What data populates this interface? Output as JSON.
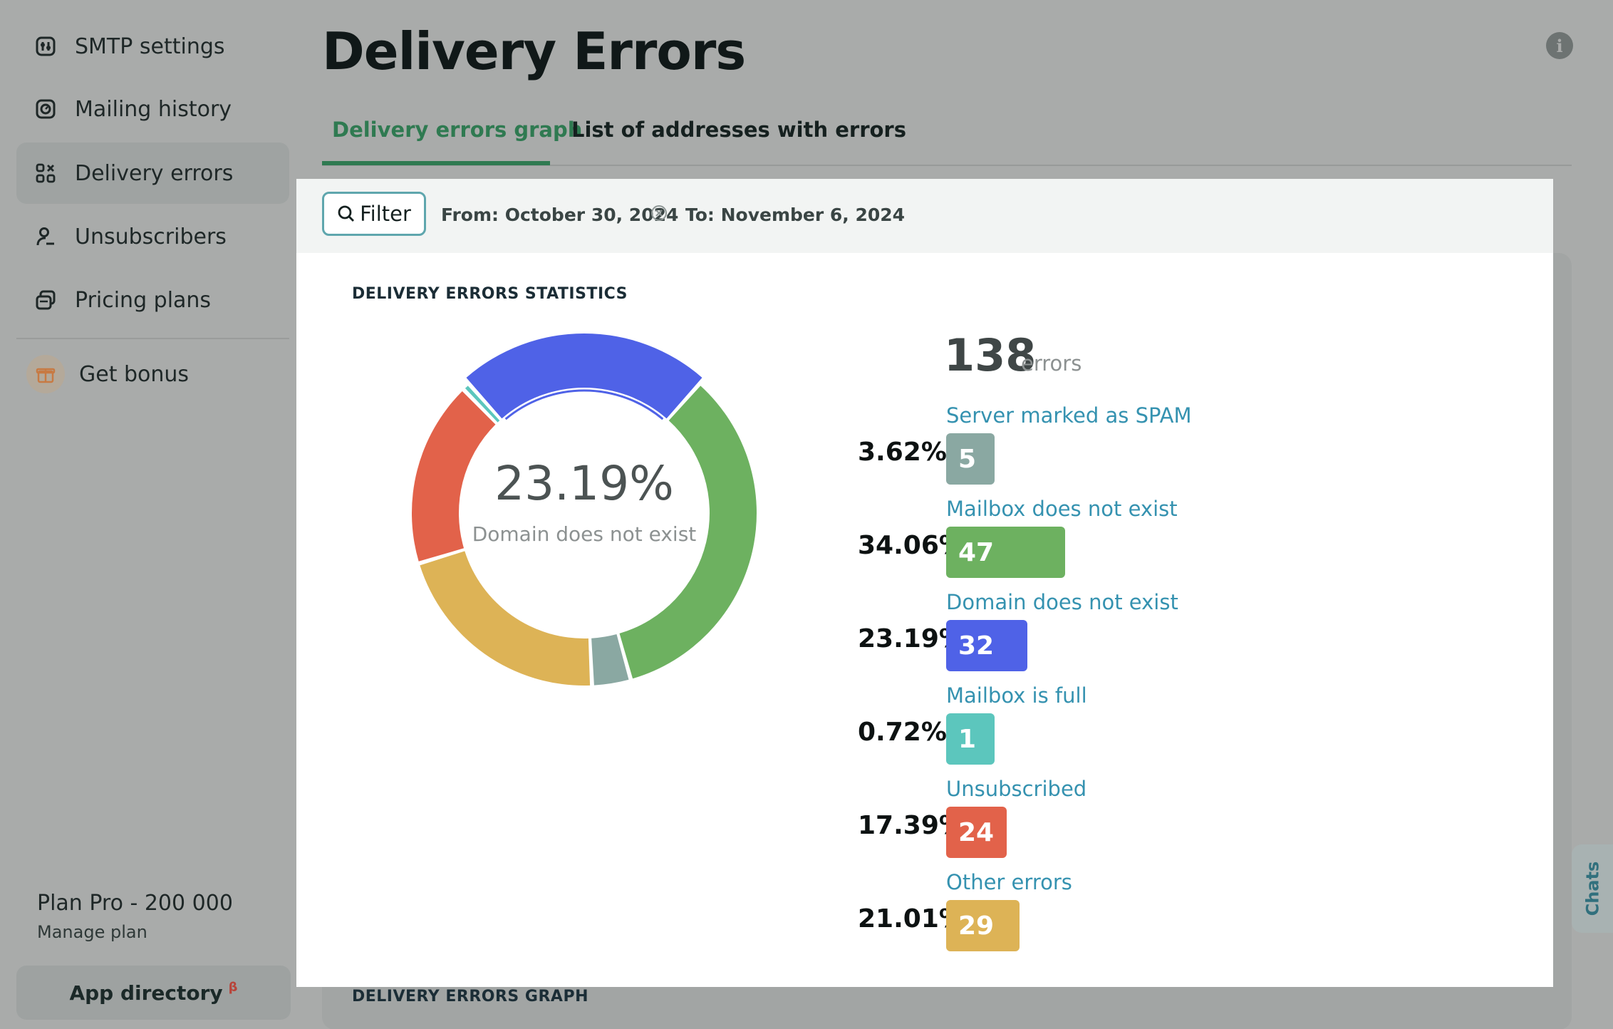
{
  "sidebar": {
    "items": [
      {
        "label": "SMTP settings",
        "icon": "smtp-icon"
      },
      {
        "label": "Mailing history",
        "icon": "history-icon"
      },
      {
        "label": "Delivery errors",
        "icon": "errors-icon",
        "active": true
      },
      {
        "label": "Unsubscribers",
        "icon": "user-icon"
      },
      {
        "label": "Pricing plans",
        "icon": "pricing-icon"
      }
    ],
    "bonus_label": "Get bonus",
    "plan_name": "Plan Pro - 200 000",
    "manage_plan": "Manage plan",
    "app_directory": "App directory",
    "app_directory_badge": "β"
  },
  "header": {
    "title": "Delivery Errors",
    "tabs": [
      {
        "label": "Delivery errors graph",
        "active": true
      },
      {
        "label": "List of addresses with errors",
        "active": false
      }
    ]
  },
  "filter": {
    "button_label": "Filter",
    "from_label": "From: October 30, 2024",
    "to_label": "To: November 6, 2024"
  },
  "stats": {
    "title": "DELIVERY ERRORS STATISTICS",
    "total": "138",
    "total_unit": "errors",
    "center_pct": "23.19%",
    "center_label": "Domain does not exist",
    "graph_title": "DELIVERY ERRORS GRAPH"
  },
  "chart_data": {
    "type": "pie",
    "title": "DELIVERY ERRORS STATISTICS",
    "categories": [
      "Server marked as SPAM",
      "Mailbox does not exist",
      "Domain does not exist",
      "Mailbox is full",
      "Unsubscribed",
      "Other errors"
    ],
    "values": [
      5,
      47,
      32,
      1,
      24,
      29
    ],
    "percentages": [
      "3.62%",
      "34.06%",
      "23.19%",
      "0.72%",
      "17.39%",
      "21.01%"
    ],
    "colors": [
      "#8aa8a2",
      "#6db160",
      "#4f62e7",
      "#5cc6bd",
      "#e2624a",
      "#ddb356"
    ],
    "highlighted": "Domain does not exist"
  },
  "chats_label": "Chats"
}
